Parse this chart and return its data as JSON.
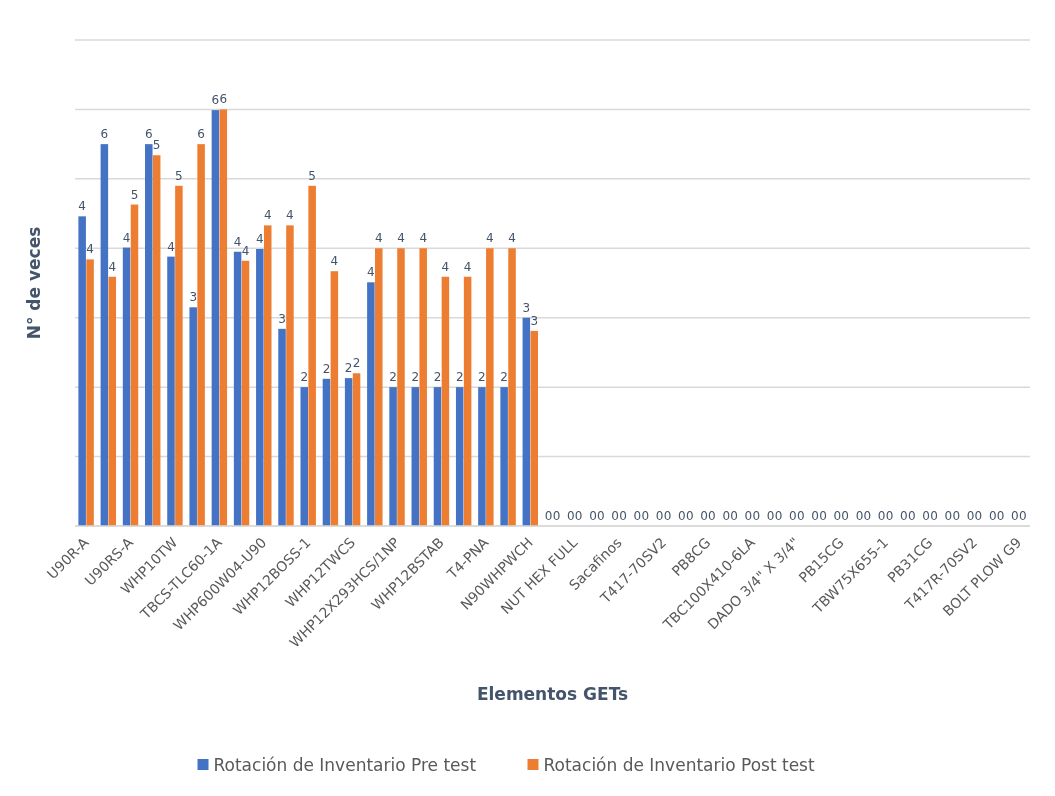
{
  "chart_data": {
    "type": "bar",
    "xlabel": "Elementos GETs",
    "ylabel": "N° de veces",
    "categories": [
      "U90R-A",
      null,
      "U90RS-A",
      null,
      "WHP10TW",
      null,
      "TBCS-TLC60-1A",
      null,
      "WHP600W04-U90",
      null,
      "WHP12BOSS-1",
      null,
      "WHP12TWCS",
      null,
      "WHP12X293HCS/1NP",
      null,
      "WHP12BSTAB",
      null,
      "T4-PNA",
      null,
      "N90WHPWCH",
      null,
      "NUT HEX FULL",
      null,
      "Sacafinos",
      null,
      "T417-70SV2",
      null,
      "PB8CG",
      null,
      "TBC100X410-6LA",
      null,
      "DADO 3/4\" X 3/4\"",
      null,
      "PB15CG",
      null,
      "TBW75X655-1",
      null,
      "PB31CG",
      null,
      "T417R-70SV2",
      null,
      "BOLT PLOW G9"
    ],
    "series": [
      {
        "name": "Rotación de Inventario Pre test",
        "color": "#4472c4",
        "values": [
          4.46,
          5.5,
          4.01,
          5.5,
          3.88,
          3.15,
          5.99,
          3.95,
          3.99,
          2.84,
          2.0,
          2.12,
          2.13,
          3.51,
          2.0,
          2.0,
          2.0,
          2.0,
          2.0,
          2.0,
          3.0,
          0,
          0,
          0,
          0,
          0,
          0,
          0,
          0,
          0,
          0,
          0,
          0,
          0,
          0,
          0,
          0,
          0,
          0,
          0,
          0,
          0,
          0
        ],
        "value_labels": [
          "4",
          "6",
          "4",
          "6",
          "4",
          "3",
          "6",
          "4",
          "4",
          "3",
          "2",
          "2",
          "2",
          "4",
          "2",
          "2",
          "2",
          "2",
          "2",
          "2",
          "3",
          "0",
          "0",
          "0",
          "0",
          "0",
          "0",
          "0",
          "0",
          "0",
          "0",
          "0",
          "0",
          "0",
          "0",
          "0",
          "0",
          "0",
          "0",
          "0",
          "0",
          "0",
          "0"
        ]
      },
      {
        "name": "Rotación de Inventario Post test",
        "color": "#ed7d31",
        "values": [
          3.84,
          3.59,
          4.63,
          5.34,
          4.9,
          5.5,
          6.0,
          3.82,
          4.33,
          4.33,
          4.9,
          3.67,
          2.2,
          4.0,
          4.0,
          4.0,
          3.59,
          3.59,
          4.0,
          4.0,
          2.81,
          0,
          0,
          0,
          0,
          0,
          0,
          0,
          0,
          0,
          0,
          0,
          0,
          0,
          0,
          0,
          0,
          0,
          0,
          0,
          0,
          0,
          0
        ],
        "value_labels": [
          "4",
          "4",
          "5",
          "5",
          "5",
          "6",
          "6",
          "4",
          "4",
          "4",
          "5",
          "4",
          "2",
          "4",
          "4",
          "4",
          "4",
          "4",
          "4",
          "4",
          "3",
          "0",
          "0",
          "0",
          "0",
          "0",
          "0",
          "0",
          "0",
          "0",
          "0",
          "0",
          "0",
          "0",
          "0",
          "0",
          "0",
          "0",
          "0",
          "0",
          "0",
          "0",
          "0"
        ]
      }
    ],
    "ylim": [
      0,
      7
    ],
    "yticks": [
      {
        "value": 0,
        "label": null
      },
      {
        "value": 1,
        "label": null
      },
      {
        "value": 2,
        "label": null
      },
      {
        "value": 3,
        "label": null
      },
      {
        "value": 4,
        "label": null
      },
      {
        "value": 5,
        "label": null
      },
      {
        "value": 6,
        "label": null
      },
      {
        "value": 7,
        "label": null
      }
    ],
    "tick_labels": "x",
    "grid": "y",
    "legend": "bottom"
  }
}
